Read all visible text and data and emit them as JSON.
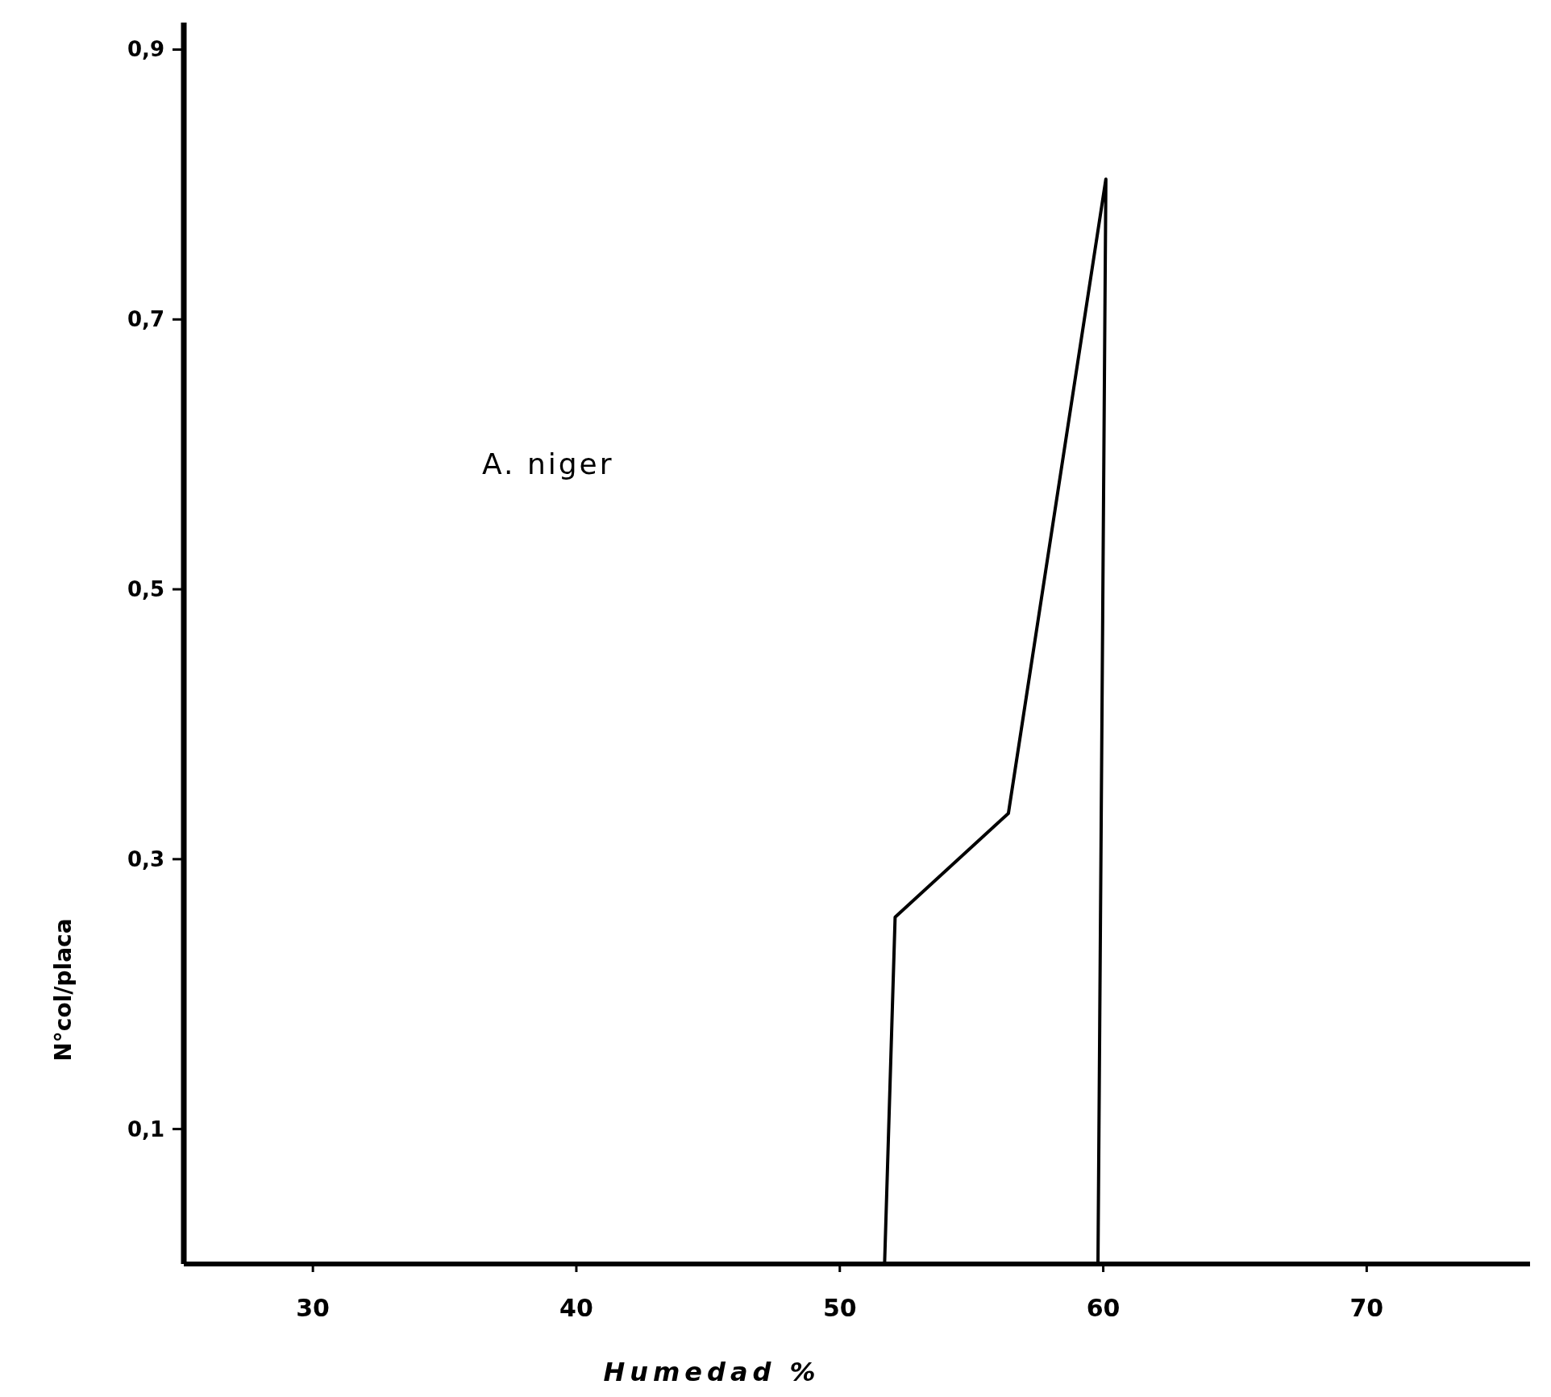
{
  "chart_data": {
    "type": "line",
    "xlabel": "Humedad %",
    "ylabel": "N°col/placa",
    "annotations": [
      "A. niger"
    ],
    "x": [
      51.7,
      52.1,
      56.4,
      60.1,
      59.8
    ],
    "series": [
      {
        "color": "#000000",
        "values": [
          0,
          0.257,
          0.334,
          0.804,
          0
        ]
      }
    ],
    "xlim": [
      25.1,
      76.2
    ],
    "xticks": [
      30,
      40,
      50,
      60,
      70
    ],
    "ylim": [
      0,
      0.92
    ],
    "yticks": [
      {
        "value": 0.1,
        "label": "0,1"
      },
      {
        "value": 0.3,
        "label": "0,3"
      },
      {
        "value": 0.5,
        "label": "0,5"
      },
      {
        "value": 0.7,
        "label": "0,7"
      },
      {
        "value": 0.9,
        "label": "0,9"
      }
    ],
    "grid": false,
    "line_style": "solid",
    "marker": "none"
  }
}
